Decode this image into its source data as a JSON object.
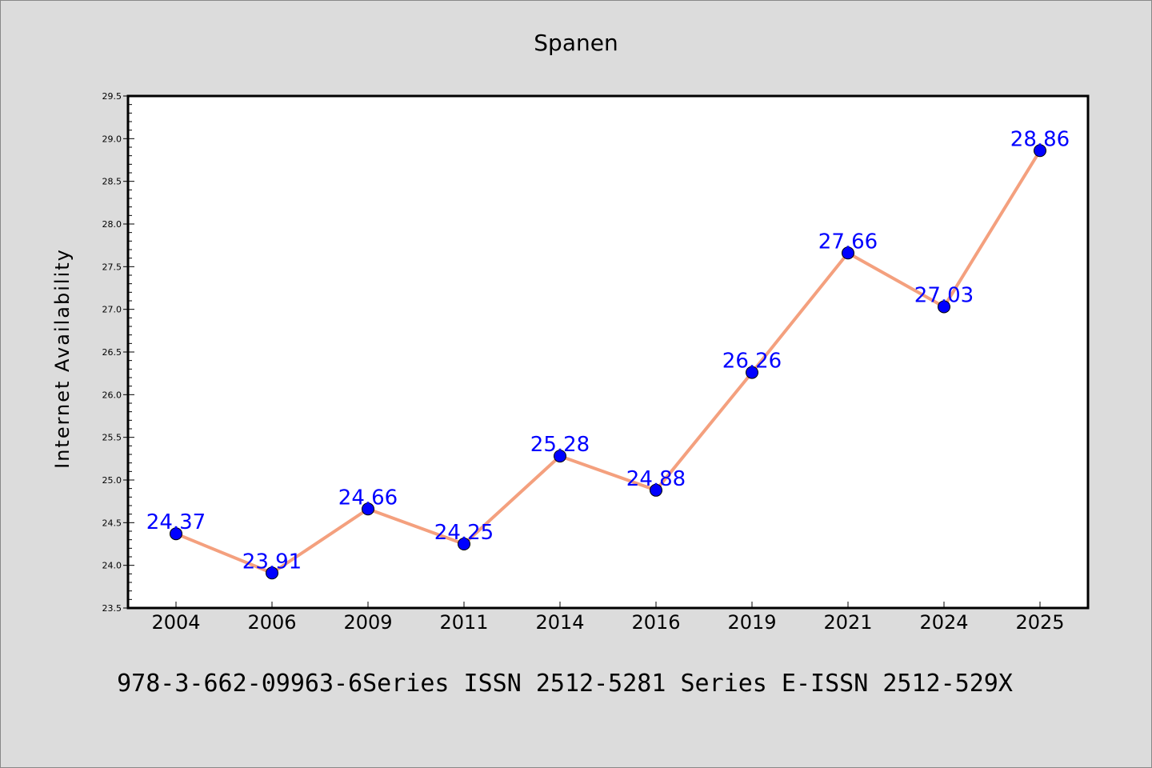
{
  "chart_data": {
    "type": "line",
    "title": "Spanen",
    "xlabel": "",
    "ylabel": "Internet Availability",
    "categories": [
      "2004",
      "2006",
      "2009",
      "2011",
      "2014",
      "2016",
      "2019",
      "2021",
      "2024",
      "2025"
    ],
    "series": [
      {
        "values": [
          24.37,
          23.91,
          24.66,
          24.25,
          25.28,
          24.88,
          26.26,
          27.66,
          27.03,
          28.86
        ],
        "line_color": "#f4a07e",
        "marker_color": "#0000ff",
        "label_color": "#0000ff"
      }
    ],
    "data_labels": [
      "24.37",
      "23.91",
      "24.66",
      "24.25",
      "25.28",
      "24.88",
      "26.26",
      "27.66",
      "27.03",
      "28.86"
    ],
    "ylim": [
      23.5,
      29.5
    ],
    "yticks": [
      "23.5",
      "24.0",
      "24.5",
      "25.0",
      "25.5",
      "26.0",
      "26.5",
      "27.0",
      "27.5",
      "28.0",
      "28.5",
      "29.0",
      "29.5"
    ],
    "grid": false,
    "legend": "none",
    "footnote": "978-3-662-09963-6Series ISSN 2512-5281 Series E-ISSN 2512-529X"
  },
  "colors": {
    "figure_background": "#dcdcdc",
    "plot_background": "#ffffff",
    "axis": "#000000"
  }
}
